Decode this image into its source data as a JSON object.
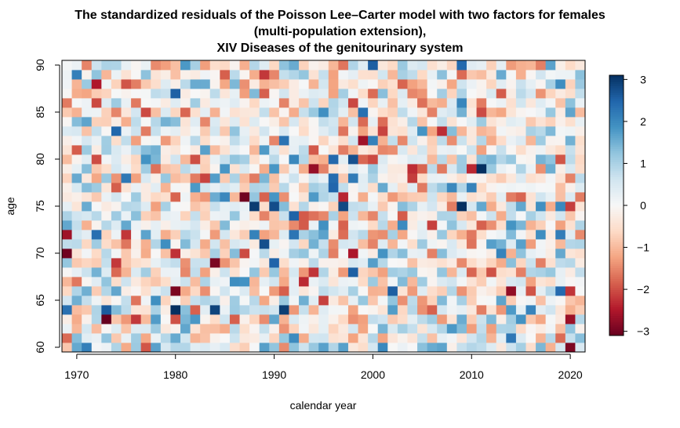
{
  "chart_data": {
    "type": "heatmap",
    "title": [
      "The standardized residuals of the Poisson Lee–Carter model with two factors for females",
      "(multi-population extension),",
      "XIV Diseases of the genitourinary system"
    ],
    "xlabel": "calendar year",
    "ylabel": "age",
    "x_range": [
      1969,
      2021
    ],
    "y_range": [
      60,
      90
    ],
    "x_ticks": [
      "1970",
      "1980",
      "1990",
      "2000",
      "2010",
      "2020"
    ],
    "y_ticks": [
      "60",
      "65",
      "70",
      "75",
      "80",
      "85",
      "90"
    ],
    "color_scale": {
      "min": -3.1,
      "max": 3.1,
      "ticks": [
        "3",
        "2",
        "1",
        "0",
        "−1",
        "−2",
        "−3"
      ],
      "palette": [
        "#67001F",
        "#B2182B",
        "#D6604D",
        "#F4A582",
        "#FDDBC7",
        "#F7F7F7",
        "#D1E5F0",
        "#92C5DE",
        "#4393C3",
        "#2166AC",
        "#053061"
      ]
    },
    "residual_summary": "residuals roughly in [-3.1, 3.1], mostly between -1 and 1, no visible structure"
  }
}
